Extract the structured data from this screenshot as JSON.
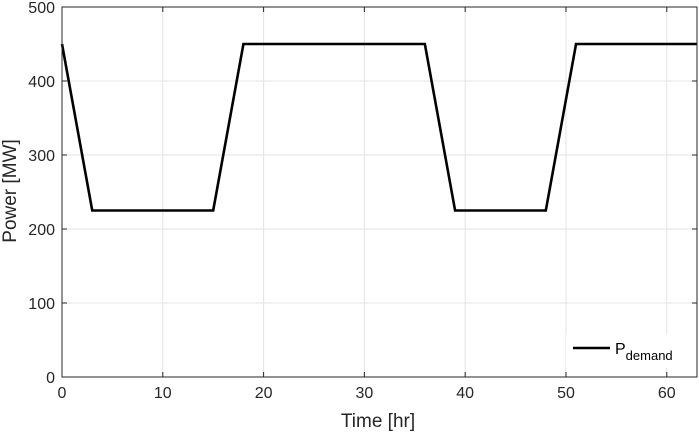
{
  "chart_data": {
    "type": "line",
    "title": "",
    "xlabel": "Time [hr]",
    "ylabel": "Power [MW]",
    "xlim": [
      0,
      63
    ],
    "ylim": [
      0,
      500
    ],
    "xticks": [
      0,
      10,
      20,
      30,
      40,
      50,
      60
    ],
    "yticks": [
      0,
      100,
      200,
      300,
      400,
      500
    ],
    "grid": true,
    "legend_position": "bottom-right",
    "legend": {
      "main": "P",
      "subscript": "demand"
    },
    "series": [
      {
        "x": [
          0,
          3,
          15,
          18,
          36,
          39,
          48,
          51,
          63
        ],
        "y": [
          450,
          225,
          225,
          450,
          450,
          225,
          225,
          450,
          450
        ],
        "color": "#000000"
      }
    ]
  }
}
